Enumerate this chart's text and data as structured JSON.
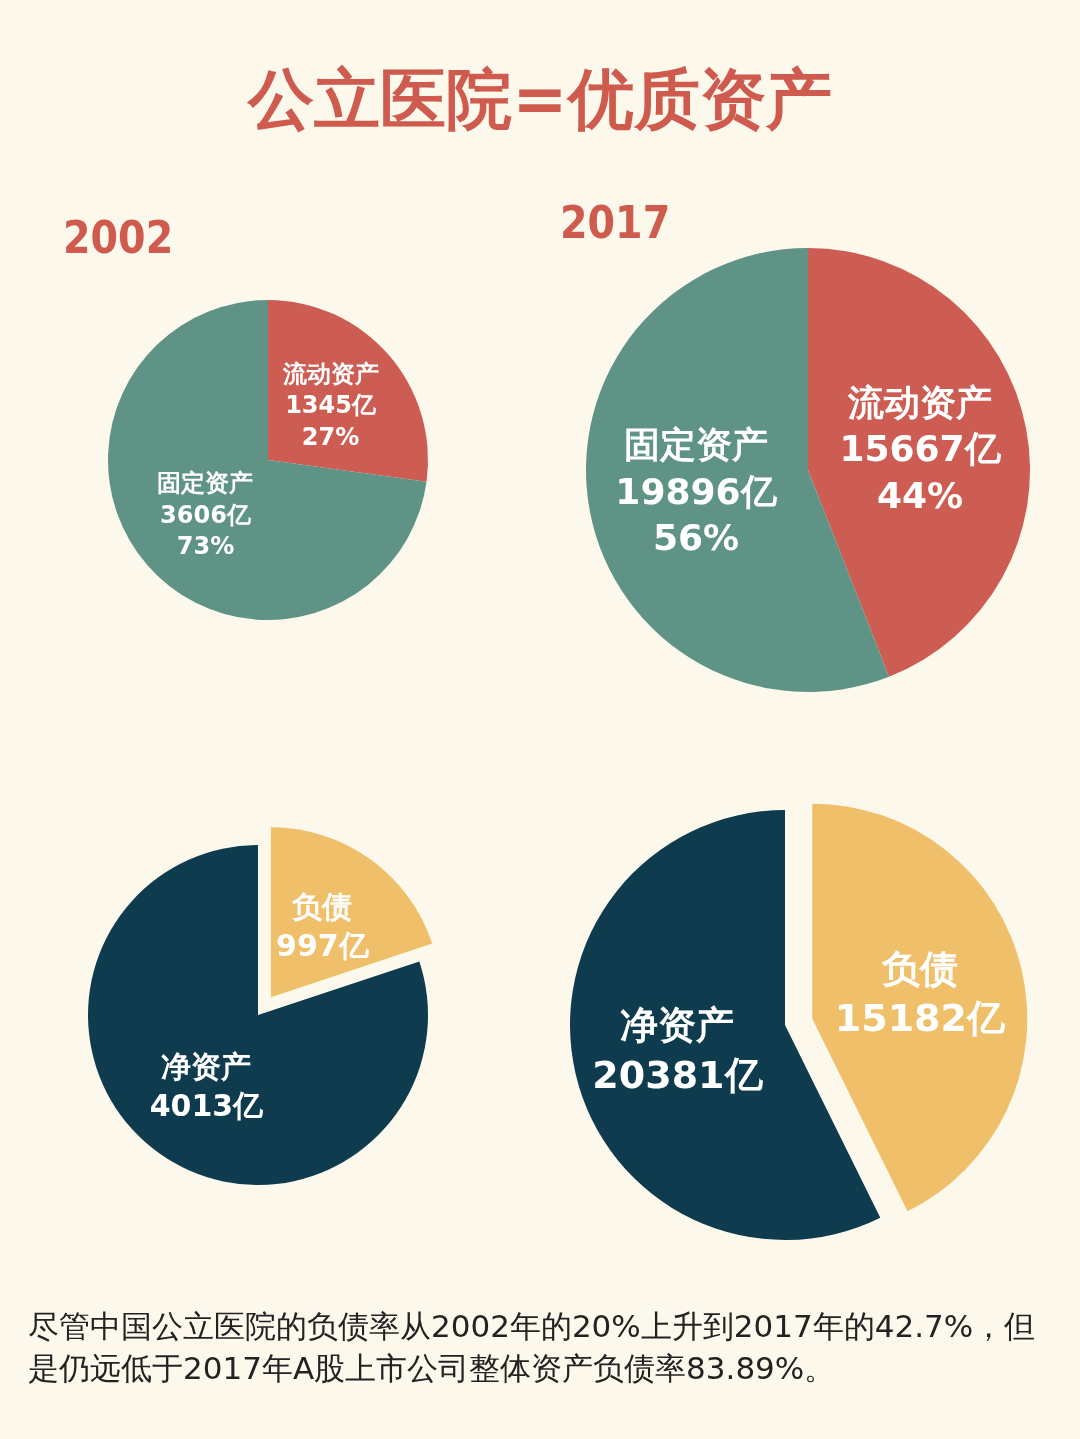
{
  "chart_data": [
    {
      "type": "other",
      "title": "公立医院=优质资产",
      "annotations": [
        "尽管中国公立医院的负债率从2002年的20%上升到2017年的42.7%，但是仍远低于2017年A股上市公司整体资产负债率83.89%。"
      ]
    },
    {
      "type": "pie",
      "title": "2002",
      "categories": [
        "流动资产",
        "固定资产"
      ],
      "values": [
        1345,
        3606
      ],
      "colors": [
        "#cd5d52",
        "#5f9385"
      ],
      "value_labels": [
        "1345亿\n27%",
        "3606亿\n73%"
      ],
      "legend": false
    },
    {
      "type": "pie",
      "title": "2017",
      "categories": [
        "流动资产",
        "固定资产"
      ],
      "values": [
        15667,
        19896
      ],
      "colors": [
        "#cd5d52",
        "#5f9385"
      ],
      "value_labels": [
        "15667亿\n44%",
        "19896亿\n56%"
      ],
      "legend": false
    },
    {
      "type": "pie",
      "categories": [
        "负债",
        "净资产"
      ],
      "values": [
        997,
        4013
      ],
      "colors": [
        "#f0bf69",
        "#0f3b4e"
      ],
      "value_labels": [
        "997亿",
        "4013亿"
      ],
      "legend": false
    },
    {
      "type": "pie",
      "categories": [
        "负债",
        "净资产"
      ],
      "values": [
        15182,
        20381
      ],
      "colors": [
        "#f0bf69",
        "#0f3b4e"
      ],
      "value_labels": [
        "15182亿",
        "20381亿"
      ],
      "legend": false
    }
  ]
}
